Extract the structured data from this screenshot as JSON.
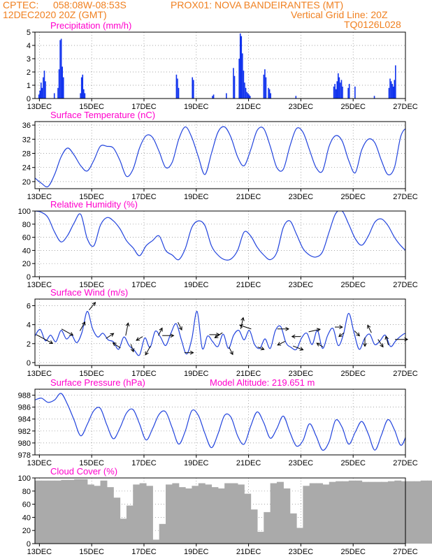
{
  "header": {
    "source": "CPTEC:",
    "coords": "058:08W-08:53S",
    "station": "PROX01: NOVA BANDEIRANTES (MT)",
    "datetime": "12DEC2020 20Z (GMT)",
    "grid_note": "Vertical Grid Line: 20Z",
    "model_code": "TQ0126L028"
  },
  "colors": {
    "header": "#f08020",
    "title": "#ff00cc",
    "series": "#2244dd",
    "bars": "#1133ee",
    "cloud": "#aaaaaa",
    "grid": "#888888"
  },
  "x_ticks": [
    "13DEC",
    "15DEC",
    "17DEC",
    "19DEC",
    "21DEC",
    "23DEC",
    "25DEC",
    "27DEC"
  ],
  "chart_data": [
    {
      "type": "bar",
      "title": "Precipitation (mm/h)",
      "ylim": [
        0,
        5
      ],
      "yticks": [
        0,
        1,
        2,
        3,
        4,
        5
      ],
      "x_range_days": [
        12.83,
        27.0
      ],
      "events": [
        {
          "day": 12.96,
          "values": [
            0.3,
            0.6,
            1.2,
            0.8,
            1.6,
            2.1,
            1.3
          ]
        },
        {
          "day": 13.55,
          "values": [
            0.4
          ]
        },
        {
          "day": 13.69,
          "values": [
            0.8,
            2.2,
            4.4,
            4.5,
            2.4,
            1.6
          ]
        },
        {
          "day": 14.55,
          "values": [
            0.4,
            1.6,
            1.8,
            0.7,
            0.4
          ]
        },
        {
          "day": 18.22,
          "values": [
            1.8,
            1.5,
            0.8
          ]
        },
        {
          "day": 18.83,
          "values": [
            1.6,
            1.4
          ]
        },
        {
          "day": 19.6,
          "values": [
            0.2,
            0.3
          ]
        },
        {
          "day": 20.13,
          "values": [
            0.4
          ]
        },
        {
          "day": 20.4,
          "values": [
            2.3,
            1.7
          ]
        },
        {
          "day": 20.62,
          "values": [
            3.0,
            4.9,
            4.7,
            3.4,
            2.1,
            1.2,
            0.8,
            0.5,
            0.4,
            0.3,
            0.2
          ]
        },
        {
          "day": 21.56,
          "values": [
            1.8,
            2.2,
            1.6
          ]
        },
        {
          "day": 21.74,
          "values": [
            0.8,
            0.7,
            0.4
          ]
        },
        {
          "day": 22.79,
          "values": [
            0.2
          ]
        },
        {
          "day": 24.24,
          "values": [
            0.9,
            1.1,
            0.7,
            1.3,
            1.9,
            1.6,
            1.2,
            1.4,
            0.9
          ]
        },
        {
          "day": 24.79,
          "values": [
            0.8,
            1.1
          ]
        },
        {
          "day": 25.05,
          "values": [
            0.9
          ]
        },
        {
          "day": 25.79,
          "values": [
            0.2
          ]
        },
        {
          "day": 26.35,
          "values": [
            0.8,
            1.5,
            1.3,
            1.1,
            0.9,
            1.4,
            2.5
          ]
        }
      ]
    },
    {
      "type": "line",
      "title": "Surface Temperature (nC)",
      "ylim": [
        18,
        37
      ],
      "yticks": [
        20,
        24,
        28,
        32,
        36
      ],
      "x_range_days": [
        12.83,
        27.0
      ],
      "start_day": 12.83,
      "step_days": 0.25,
      "values": [
        21,
        19.5,
        18.6,
        22,
        27,
        29.5,
        27.5,
        24.5,
        23,
        26,
        30,
        30,
        29.5,
        26,
        21.5,
        23.5,
        29.5,
        33,
        32.5,
        28.5,
        24,
        25.5,
        32,
        35.5,
        32.5,
        27,
        22,
        28,
        34,
        35.5,
        32.5,
        27,
        24.5,
        29,
        34.5,
        35,
        30,
        24,
        23.5,
        30,
        35,
        34,
        29,
        24,
        23,
        30,
        33,
        31.5,
        26,
        22.5,
        29,
        32,
        31,
        26,
        22,
        24,
        33,
        35,
        32,
        27,
        23.5,
        31,
        35.5,
        34,
        29,
        25,
        24.5,
        31.5,
        33.5,
        30,
        25.5,
        25.5,
        28.5,
        26.5
      ]
    },
    {
      "type": "line",
      "title": "Relative Humidity (%)",
      "ylim": [
        0,
        100
      ],
      "yticks": [
        0,
        20,
        40,
        60,
        80,
        100
      ],
      "x_range_days": [
        12.83,
        27.0
      ],
      "start_day": 12.83,
      "step_days": 0.25,
      "values": [
        100,
        98,
        90,
        68,
        53,
        63,
        82,
        95,
        58,
        47,
        78,
        90,
        85,
        73,
        55,
        44,
        32,
        47,
        55,
        62,
        40,
        33,
        26,
        43,
        75,
        85,
        78,
        47,
        33,
        26,
        27,
        40,
        68,
        62,
        45,
        33,
        26,
        37,
        75,
        85,
        65,
        43,
        33,
        30,
        38,
        68,
        96,
        100,
        80,
        58,
        48,
        62,
        83,
        88,
        78,
        60,
        47,
        40,
        55,
        72,
        100,
        88,
        60,
        32,
        28,
        36,
        72,
        85,
        68,
        50,
        42,
        55,
        85,
        88,
        62,
        40,
        33,
        40,
        72,
        84,
        80,
        70,
        55,
        62,
        85,
        90
      ]
    },
    {
      "type": "line",
      "title": "Surface Wind (m/s)",
      "ylim": [
        -0.3,
        6.7
      ],
      "yticks": [
        0,
        2,
        4,
        6
      ],
      "x_range_days": [
        12.83,
        27.0
      ],
      "start_day": 12.83,
      "step_days": 0.2,
      "values": [
        2.8,
        3.5,
        2.3,
        2.9,
        2.2,
        3.4,
        2.5,
        2.9,
        2.1,
        3.2,
        5.4,
        3.6,
        2.7,
        3.1,
        2.4,
        2.2,
        1.4,
        2.7,
        1.8,
        1.3,
        0.8,
        2.6,
        1.6,
        3.3,
        2.7,
        1.8,
        3.1,
        4.1,
        2.4,
        0.9,
        2.5,
        5.4,
        1.5,
        2.8,
        2.2,
        1.7,
        3.0,
        1.5,
        2.9,
        3.4,
        2.4,
        3.4,
        1.9,
        1.5,
        2.5,
        1.5,
        3.4,
        3.8,
        2.1,
        1.6,
        1.4,
        2.6,
        3.1,
        1.9,
        3.4,
        1.5,
        2.9,
        3.6,
        1.8,
        3.0,
        5.2,
        3.2,
        1.4,
        2.5,
        3.0,
        1.9,
        2.3,
        2.9,
        1.7,
        2.3,
        2.8,
        3.0,
        1.7,
        2.5,
        2.1,
        2.4,
        2.1,
        2.3,
        1.9,
        3.1,
        2.2,
        2.9,
        2.1,
        1.9,
        2.8,
        2.2,
        2.5,
        1.7,
        2.4,
        1.1,
        2.7,
        0.3,
        2.5,
        1.8,
        3.0,
        1.4,
        2.8,
        2.3,
        3.3,
        2.0,
        2.8,
        1.8,
        2.5,
        1.8,
        2.9,
        2.2,
        2.9,
        2.3,
        2.7,
        2.2,
        2.7,
        2.3,
        2.6,
        2.4,
        2.5,
        2.6,
        2.4,
        2.5,
        2.3,
        2.4,
        2.5
      ],
      "arrows": [
        {
          "day": 12.88,
          "u": 1.3,
          "v": -0.7
        },
        {
          "day": 13.85,
          "u": 0.9,
          "v": -0.5
        },
        {
          "day": 14.55,
          "u": 0.4,
          "v": 0.7
        },
        {
          "day": 14.9,
          "u": 0.5,
          "v": 0.6
        },
        {
          "day": 15.55,
          "u": 0.6,
          "v": 0.4
        },
        {
          "day": 16.1,
          "u": -0.6,
          "v": 0.4
        },
        {
          "day": 16.3,
          "u": 0.2,
          "v": 1.0
        },
        {
          "day": 16.5,
          "u": 0.2,
          "v": -0.6
        },
        {
          "day": 16.95,
          "u": -0.5,
          "v": -0.3
        },
        {
          "day": 17.25,
          "u": -0.4,
          "v": -0.7
        },
        {
          "day": 17.55,
          "u": 0.3,
          "v": 0.6
        },
        {
          "day": 17.7,
          "u": 0.9,
          "v": 0.0
        },
        {
          "day": 18.3,
          "u": 0.3,
          "v": -0.6
        },
        {
          "day": 18.55,
          "u": 0.7,
          "v": 0.0
        },
        {
          "day": 19.5,
          "u": 0.8,
          "v": 0.0
        },
        {
          "day": 20.0,
          "u": -0.6,
          "v": -0.4
        },
        {
          "day": 20.25,
          "u": 0.3,
          "v": -0.6
        },
        {
          "day": 20.7,
          "u": 0.2,
          "v": 0.9
        },
        {
          "day": 21.1,
          "u": -0.9,
          "v": 0.3
        },
        {
          "day": 21.35,
          "u": 0.5,
          "v": -0.2
        },
        {
          "day": 22.1,
          "u": 0.9,
          "v": 0.0
        },
        {
          "day": 22.4,
          "u": -0.6,
          "v": -0.3
        },
        {
          "day": 22.7,
          "u": 0.8,
          "v": -0.3
        },
        {
          "day": 23.0,
          "u": -0.7,
          "v": 0.0
        },
        {
          "day": 23.3,
          "u": 0.9,
          "v": 0.2
        },
        {
          "day": 23.85,
          "u": -0.5,
          "v": 0.3
        },
        {
          "day": 24.3,
          "u": 0.6,
          "v": 0.0
        },
        {
          "day": 24.65,
          "u": -0.4,
          "v": -0.3
        },
        {
          "day": 25.05,
          "u": 0.4,
          "v": -0.4
        },
        {
          "day": 25.45,
          "u": 0.0,
          "v": -0.7
        },
        {
          "day": 25.7,
          "u": -0.3,
          "v": 0.6
        },
        {
          "day": 25.95,
          "u": 0.4,
          "v": -0.6
        },
        {
          "day": 26.35,
          "u": -0.2,
          "v": 0.7
        },
        {
          "day": 26.6,
          "u": 1.0,
          "v": 0.0
        }
      ]
    },
    {
      "type": "line",
      "title": "Surface Pressure (hPa)",
      "annotation": "Model Altitude: 219.651  m",
      "ylim": [
        978,
        989
      ],
      "yticks": [
        978,
        980,
        982,
        984,
        986,
        988
      ],
      "x_range_days": [
        12.83,
        27.0
      ],
      "start_day": 12.83,
      "step_days": 0.25,
      "values": [
        987.2,
        987.5,
        986.8,
        987.2,
        988.3,
        986.4,
        983.8,
        981.2,
        983.1,
        985.4,
        985.8,
        983.0,
        980.7,
        982.5,
        985.0,
        985.6,
        983.2,
        980.5,
        982.4,
        984.8,
        985.2,
        982.5,
        979.8,
        982.0,
        985.4,
        984.6,
        981.6,
        979.2,
        981.5,
        984.6,
        984.3,
        981.2,
        979.8,
        982.8,
        985.2,
        983.4,
        980.8,
        982.4,
        984.5,
        981.8,
        979.5,
        980.4,
        983.2,
        981.2,
        978.8,
        980.2,
        983.8,
        982.6,
        979.8,
        981.8,
        983.6,
        981.5,
        978.8,
        981.3,
        983.9,
        982.2,
        979.6,
        981.8,
        984.2,
        982.2,
        979.3,
        981.3,
        984.1,
        982.1,
        979.2,
        981.4,
        983.6,
        981.8,
        978.8,
        980.8,
        984.0,
        982.2,
        979.5,
        981.5,
        983.2,
        980.4,
        978.5,
        980.8,
        983.6,
        982.4,
        980.0,
        981.8,
        984.5,
        983.5,
        980.2,
        979.6,
        980.0,
        982.0,
        984.0,
        985.0,
        983.2,
        982.6,
        984.3,
        985.4,
        983.5
      ]
    },
    {
      "type": "bar",
      "title": "Cloud Cover (%)",
      "ylim": [
        0,
        100
      ],
      "yticks": [
        0,
        20,
        40,
        60,
        80,
        100
      ],
      "x_range_days": [
        12.83,
        27.0
      ],
      "start_day": 12.83,
      "step_days": 0.25,
      "values": [
        96,
        96,
        96,
        96,
        97,
        97,
        98,
        98,
        90,
        88,
        96,
        86,
        70,
        38,
        58,
        90,
        92,
        88,
        6,
        30,
        90,
        92,
        86,
        84,
        88,
        92,
        90,
        86,
        84,
        92,
        92,
        90,
        76,
        52,
        18,
        48,
        92,
        94,
        84,
        46,
        24,
        88,
        92,
        92,
        90,
        94,
        95,
        95,
        96,
        96,
        94,
        94,
        94,
        94,
        95,
        96,
        95,
        95,
        95,
        96,
        96,
        95,
        96,
        96,
        97,
        97,
        98,
        96,
        96,
        96,
        96,
        95,
        96,
        96,
        97,
        97,
        96,
        96,
        96,
        95,
        96,
        96,
        96,
        97,
        97,
        97
      ]
    }
  ]
}
